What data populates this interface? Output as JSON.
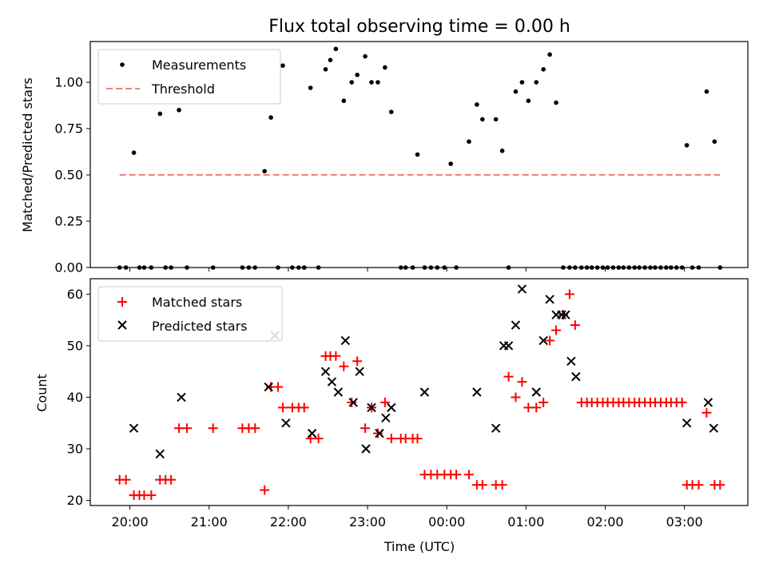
{
  "chart_data": [
    {
      "type": "scatter",
      "title": "Flux total observing time = 0.00 h",
      "xlabel": "",
      "ylabel": "Matched/Predicted stars",
      "ylim": [
        0,
        1.22
      ],
      "yticks": [
        "0.00",
        "0.25",
        "0.50",
        "0.75",
        "1.00"
      ],
      "ytick_values": [
        0,
        0.25,
        0.5,
        0.75,
        1.0
      ],
      "legend_position": "top-left",
      "colors": {
        "measurements": "#000000",
        "threshold": "#f08080"
      },
      "series": [
        {
          "name": "Measurements",
          "marker": "dot",
          "x": [
            19.87,
            19.95,
            20.05,
            20.12,
            20.18,
            20.27,
            20.38,
            20.45,
            20.52,
            20.62,
            20.72,
            21.05,
            21.42,
            21.5,
            21.58,
            21.7,
            21.78,
            21.87,
            21.93,
            22.05,
            22.13,
            22.2,
            22.28,
            22.38,
            22.47,
            22.53,
            22.6,
            22.7,
            22.8,
            22.87,
            22.97,
            23.05,
            23.13,
            23.22,
            23.3,
            23.42,
            23.48,
            23.57,
            23.63,
            23.72,
            23.8,
            23.88,
            23.97,
            24.05,
            24.12,
            24.28,
            24.38,
            24.45,
            24.62,
            24.7,
            24.78,
            24.87,
            24.95,
            25.03,
            25.13,
            25.22,
            25.3,
            25.38,
            25.47,
            25.55,
            25.62,
            25.7,
            25.77,
            25.83,
            25.9,
            25.97,
            26.03,
            26.1,
            26.17,
            26.23,
            26.3,
            26.37,
            26.43,
            26.5,
            26.57,
            26.63,
            26.7,
            26.77,
            26.83,
            26.9,
            26.97,
            27.03,
            27.1,
            27.18,
            27.28,
            27.38,
            27.45
          ],
          "y": [
            0,
            0,
            0.62,
            0,
            0,
            0,
            0.83,
            0,
            0,
            0.85,
            0,
            0,
            0,
            0,
            0,
            0.52,
            0.81,
            0,
            1.09,
            0,
            0,
            0,
            0.97,
            0,
            1.07,
            1.12,
            1.18,
            0.9,
            1.0,
            1.04,
            1.14,
            1.0,
            1.0,
            1.08,
            0.84,
            0,
            0,
            0,
            0.61,
            0,
            0,
            0,
            0,
            0.56,
            0,
            0.68,
            0.88,
            0.8,
            0.8,
            0.63,
            0,
            0.95,
            1.0,
            0.9,
            1.0,
            1.07,
            1.15,
            0.89,
            0,
            0,
            0,
            0,
            0,
            0,
            0,
            0,
            0,
            0,
            0,
            0,
            0,
            0,
            0,
            0,
            0,
            0,
            0,
            0,
            0,
            0,
            0,
            0.66,
            0,
            0,
            0.95,
            0.68,
            0
          ]
        },
        {
          "name": "Threshold",
          "marker": "dashed-line",
          "x": [
            19.87,
            27.45
          ],
          "y": [
            0.5,
            0.5
          ]
        }
      ]
    },
    {
      "type": "scatter",
      "title": "",
      "xlabel": "Time (UTC)",
      "ylabel": "Count",
      "ylim": [
        19,
        63
      ],
      "yticks": [
        "20",
        "30",
        "40",
        "50",
        "60"
      ],
      "ytick_values": [
        20,
        30,
        40,
        50,
        60
      ],
      "xlim": [
        19.5,
        27.8
      ],
      "xticks": [
        "20:00",
        "21:00",
        "22:00",
        "23:00",
        "00:00",
        "01:00",
        "02:00",
        "03:00"
      ],
      "xtick_values": [
        20,
        21,
        22,
        23,
        24,
        25,
        26,
        27
      ],
      "legend_position": "top-left",
      "colors": {
        "matched": "#ff0000",
        "predicted": "#000000"
      },
      "series": [
        {
          "name": "Matched stars",
          "marker": "plus",
          "x": [
            19.87,
            19.95,
            20.05,
            20.12,
            20.18,
            20.27,
            20.38,
            20.45,
            20.52,
            20.62,
            20.72,
            21.05,
            21.42,
            21.5,
            21.58,
            21.7,
            21.78,
            21.87,
            21.93,
            22.05,
            22.13,
            22.2,
            22.28,
            22.38,
            22.47,
            22.53,
            22.6,
            22.7,
            22.8,
            22.87,
            22.97,
            23.05,
            23.13,
            23.22,
            23.3,
            23.42,
            23.48,
            23.57,
            23.63,
            23.72,
            23.8,
            23.88,
            23.97,
            24.05,
            24.12,
            24.28,
            24.38,
            24.45,
            24.62,
            24.7,
            24.78,
            24.87,
            24.95,
            25.03,
            25.13,
            25.22,
            25.3,
            25.38,
            25.47,
            25.55,
            25.62,
            25.7,
            25.77,
            25.83,
            25.9,
            25.97,
            26.03,
            26.1,
            26.17,
            26.23,
            26.3,
            26.37,
            26.43,
            26.5,
            26.57,
            26.63,
            26.7,
            26.77,
            26.83,
            26.9,
            26.97,
            27.03,
            27.1,
            27.18,
            27.28,
            27.38,
            27.45
          ],
          "y": [
            24,
            24,
            21,
            21,
            21,
            21,
            24,
            24,
            24,
            34,
            34,
            34,
            34,
            34,
            34,
            22,
            42,
            42,
            38,
            38,
            38,
            38,
            32,
            32,
            48,
            48,
            48,
            46,
            39,
            47,
            34,
            38,
            33,
            39,
            32,
            32,
            32,
            32,
            32,
            25,
            25,
            25,
            25,
            25,
            25,
            25,
            23,
            23,
            23,
            23,
            44,
            40,
            43,
            38,
            38,
            39,
            51,
            53,
            56,
            60,
            54,
            39,
            39,
            39,
            39,
            39,
            39,
            39,
            39,
            39,
            39,
            39,
            39,
            39,
            39,
            39,
            39,
            39,
            39,
            39,
            39,
            23,
            23,
            23,
            37,
            23,
            23
          ]
        },
        {
          "name": "Predicted stars",
          "marker": "x",
          "x": [
            20.05,
            20.38,
            20.65,
            21.75,
            21.83,
            21.97,
            22.3,
            22.47,
            22.55,
            22.63,
            22.72,
            22.82,
            22.9,
            22.98,
            23.05,
            23.15,
            23.23,
            23.3,
            23.72,
            24.38,
            24.62,
            24.72,
            24.78,
            24.87,
            24.95,
            25.13,
            25.22,
            25.3,
            25.38,
            25.45,
            25.5,
            25.57,
            25.63,
            27.03,
            27.3,
            27.37
          ],
          "y": [
            34,
            29,
            40,
            42,
            52,
            35,
            33,
            45,
            43,
            41,
            51,
            39,
            45,
            30,
            38,
            33,
            36,
            38,
            41,
            41,
            34,
            50,
            50,
            54,
            61,
            41,
            51,
            59,
            56,
            56,
            56,
            47,
            44,
            35,
            39,
            34
          ]
        }
      ]
    }
  ]
}
